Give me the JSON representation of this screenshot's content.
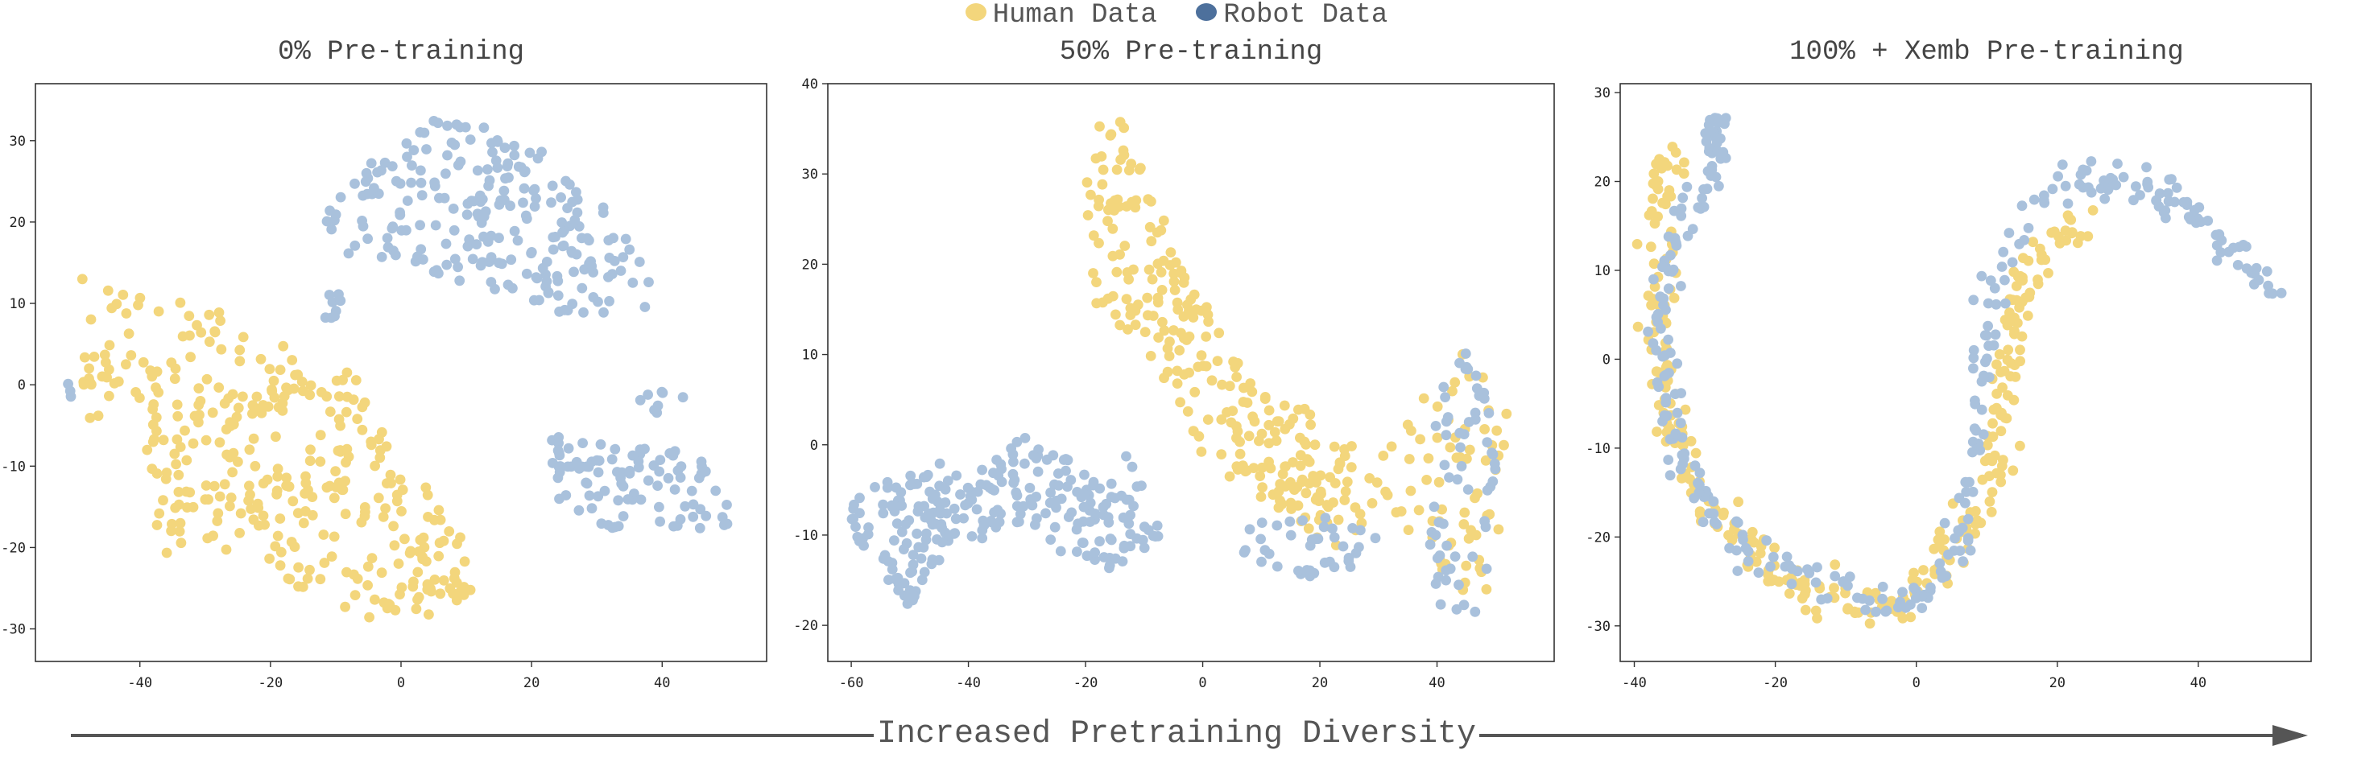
{
  "legend": {
    "items": [
      {
        "label": "Human Data",
        "color": "#f3d67c"
      },
      {
        "label": "Robot Data",
        "color": "#4d709c"
      }
    ]
  },
  "marker_colors": {
    "human": "#f3d67c",
    "robot": "#a9c1dc"
  },
  "arrow": {
    "label": "Increased Pretraining Diversity",
    "color": "#555555"
  },
  "chart_data": [
    {
      "type": "scatter",
      "title": "0% Pre-training",
      "xlabel": "",
      "ylabel": "",
      "xlim": [
        -56,
        56
      ],
      "ylim": [
        -34,
        37
      ],
      "xticks": [
        -40,
        -20,
        0,
        20,
        40
      ],
      "yticks": [
        -30,
        -20,
        -10,
        0,
        10,
        20,
        30
      ],
      "grid": false,
      "series": [
        {
          "name": "Human Data",
          "clusters": [
            {
              "kind": "poly",
              "pts": [
                [
                  -50,
                  14
                ],
                [
                  -42,
                  12
                ],
                [
                  -30,
                  10
                ],
                [
                  -14,
                  4
                ],
                [
                  -6,
                  1
                ],
                [
                  0,
                  -8
                ],
                [
                  6,
                  -12
                ],
                [
                  12,
                  -24
                ],
                [
                  8,
                  -28
                ],
                [
                  -4,
                  -29
                ],
                [
                  -14,
                  -26
                ],
                [
                  -24,
                  -20
                ],
                [
                  -34,
                  -22
                ],
                [
                  -37,
                  -20
                ],
                [
                  -40,
                  -8
                ],
                [
                  -48,
                  -4
                ],
                [
                  -50,
                  4
                ]
              ],
              "n": 340,
              "seed": 11
            },
            {
              "kind": "blob",
              "c": [
                8,
                -25
              ],
              "r": [
                5,
                2
              ],
              "n": 10,
              "seed": 12
            }
          ]
        },
        {
          "name": "Robot Data",
          "clusters": [
            {
              "kind": "poly",
              "pts": [
                [
                  -10,
                  24
                ],
                [
                  -4,
                  28
                ],
                [
                  2,
                  33
                ],
                [
                  12,
                  32
                ],
                [
                  22,
                  29
                ],
                [
                  32,
                  22
                ],
                [
                  38,
                  16
                ],
                [
                  38,
                  10
                ],
                [
                  34,
                  6
                ],
                [
                  28,
                  6
                ],
                [
                  22,
                  10
                ],
                [
                  12,
                  12
                ],
                [
                  2,
                  14
                ],
                [
                  -8,
                  16
                ],
                [
                  -12,
                  20
                ]
              ],
              "n": 230,
              "seed": 21
            },
            {
              "kind": "blob",
              "c": [
                -11,
                10
              ],
              "r": [
                2,
                2
              ],
              "n": 8,
              "seed": 22
            },
            {
              "kind": "poly",
              "pts": [
                [
                  22,
                  -6
                ],
                [
                  30,
                  -6
                ],
                [
                  38,
                  -8
                ],
                [
                  44,
                  -8
                ],
                [
                  50,
                  -12
                ],
                [
                  50,
                  -18
                ],
                [
                  42,
                  -18
                ],
                [
                  32,
                  -18
                ],
                [
                  24,
                  -14
                ]
              ],
              "n": 95,
              "seed": 23
            },
            {
              "kind": "blob",
              "c": [
                40,
                -2
              ],
              "r": [
                4,
                1.5
              ],
              "n": 8,
              "seed": 24
            },
            {
              "kind": "blob",
              "c": [
                -51,
                -1
              ],
              "r": [
                0.6,
                1.5
              ],
              "n": 3,
              "seed": 25
            }
          ]
        }
      ]
    },
    {
      "type": "scatter",
      "title": "50% Pre-training",
      "xlabel": "",
      "ylabel": "",
      "xlim": [
        -64,
        60
      ],
      "ylim": [
        -24,
        40
      ],
      "xticks": [
        -60,
        -40,
        -20,
        0,
        20,
        40
      ],
      "yticks": [
        -20,
        -10,
        0,
        10,
        20,
        30,
        40
      ],
      "grid": false,
      "series": [
        {
          "name": "Human Data",
          "clusters": [
            {
              "kind": "poly",
              "pts": [
                [
                  -20,
                  36
                ],
                [
                  -14,
                  36
                ],
                [
                  -8,
                  28
                ],
                [
                  -4,
                  20
                ],
                [
                  4,
                  12
                ],
                [
                  10,
                  6
                ],
                [
                  18,
                  4
                ],
                [
                  26,
                  0
                ],
                [
                  30,
                  -8
                ],
                [
                  22,
                  -12
                ],
                [
                  14,
                  -8
                ],
                [
                  6,
                  -4
                ],
                [
                  0,
                  -2
                ],
                [
                  -6,
                  6
                ],
                [
                  -12,
                  12
                ],
                [
                  -18,
                  14
                ],
                [
                  -20,
                  26
                ]
              ],
              "n": 260,
              "seed": 31
            },
            {
              "kind": "poly",
              "pts": [
                [
                  28,
                  -4
                ],
                [
                  36,
                  4
                ],
                [
                  40,
                  10
                ],
                [
                  44,
                  12
                ],
                [
                  52,
                  4
                ],
                [
                  52,
                  -14
                ],
                [
                  46,
                  -18
                ],
                [
                  38,
                  -12
                ],
                [
                  30,
                  -10
                ]
              ],
              "n": 70,
              "seed": 32
            }
          ]
        },
        {
          "name": "Robot Data",
          "clusters": [
            {
              "kind": "poly",
              "pts": [
                [
                  -62,
                  -6
                ],
                [
                  -54,
                  -4
                ],
                [
                  -46,
                  -2
                ],
                [
                  -36,
                  -2
                ],
                [
                  -30,
                  2
                ],
                [
                  -20,
                  -2
                ],
                [
                  -12,
                  -6
                ],
                [
                  -6,
                  -10
                ],
                [
                  -16,
                  -14
                ],
                [
                  -24,
                  -12
                ],
                [
                  -34,
                  -10
                ],
                [
                  -44,
                  -12
                ],
                [
                  -50,
                  -18
                ],
                [
                  -58,
                  -12
                ]
              ],
              "n": 250,
              "seed": 41
            },
            {
              "kind": "poly",
              "pts": [
                [
                  4,
                  -10
                ],
                [
                  12,
                  -8
                ],
                [
                  22,
                  -8
                ],
                [
                  30,
                  -10
                ],
                [
                  24,
                  -16
                ],
                [
                  14,
                  -14
                ],
                [
                  6,
                  -12
                ]
              ],
              "n": 40,
              "seed": 42
            },
            {
              "kind": "poly",
              "pts": [
                [
                  40,
                  14
                ],
                [
                  48,
                  8
                ],
                [
                  52,
                  0
                ],
                [
                  50,
                  -12
                ],
                [
                  46,
                  -20
                ],
                [
                  40,
                  -18
                ],
                [
                  38,
                  -6
                ],
                [
                  40,
                  4
                ]
              ],
              "n": 60,
              "seed": 43
            },
            {
              "kind": "blob",
              "c": [
                -12,
                -4
              ],
              "r": [
                3,
                3
              ],
              "n": 6,
              "seed": 44
            }
          ]
        }
      ]
    },
    {
      "type": "scatter",
      "title": "100% + Xemb Pre-training",
      "xlabel": "",
      "ylabel": "",
      "xlim": [
        -42,
        56
      ],
      "ylim": [
        -34,
        31
      ],
      "xticks": [
        -40,
        -20,
        0,
        20,
        40
      ],
      "yticks": [
        -30,
        -20,
        -10,
        0,
        10,
        20,
        30
      ],
      "grid": false,
      "series": [
        {
          "name": "Human Data",
          "clusters": [
            {
              "kind": "path",
              "pts": [
                [
                  -35,
                  24
                ],
                [
                  -36,
                  16
                ],
                [
                  -37,
                  8
                ],
                [
                  -36,
                  0
                ],
                [
                  -35,
                  -8
                ],
                [
                  -32,
                  -14
                ],
                [
                  -26,
                  -20
                ],
                [
                  -20,
                  -24
                ],
                [
                  -14,
                  -26
                ],
                [
                  -8,
                  -28
                ],
                [
                  -2,
                  -28
                ],
                [
                  2,
                  -24
                ],
                [
                  6,
                  -20
                ],
                [
                  10,
                  -16
                ],
                [
                  12,
                  -8
                ],
                [
                  13,
                  0
                ],
                [
                  14,
                  6
                ],
                [
                  16,
                  10
                ],
                [
                  20,
                  14
                ],
                [
                  24,
                  16
                ]
              ],
              "n": 320,
              "spread": 2.4,
              "seed": 51
            }
          ]
        },
        {
          "name": "Robot Data",
          "clusters": [
            {
              "kind": "path",
              "pts": [
                [
                  -28,
                  27
                ],
                [
                  -30,
                  20
                ],
                [
                  -34,
                  14
                ],
                [
                  -36,
                  6
                ],
                [
                  -36,
                  -2
                ],
                [
                  -34,
                  -10
                ],
                [
                  -30,
                  -16
                ],
                [
                  -24,
                  -22
                ],
                [
                  -16,
                  -24
                ],
                [
                  -10,
                  -26
                ],
                [
                  -4,
                  -28
                ],
                [
                  2,
                  -26
                ],
                [
                  6,
                  -22
                ],
                [
                  8,
                  -10
                ],
                [
                  10,
                  4
                ],
                [
                  12,
                  10
                ],
                [
                  16,
                  16
                ],
                [
                  20,
                  20
                ],
                [
                  26,
                  20
                ],
                [
                  32,
                  20
                ],
                [
                  36,
                  18
                ],
                [
                  42,
                  14
                ],
                [
                  48,
                  10
                ],
                [
                  52,
                  6
                ]
              ],
              "n": 300,
              "spread": 2.0,
              "seed": 61
            },
            {
              "kind": "blob",
              "c": [
                -29,
                24
              ],
              "r": [
                2,
                3
              ],
              "n": 14,
              "seed": 62
            }
          ]
        }
      ]
    }
  ]
}
